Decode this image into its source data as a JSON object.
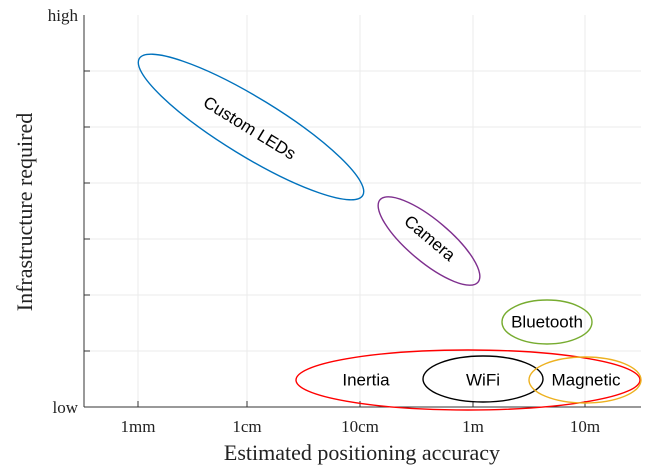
{
  "axes": {
    "x_label": "Estimated positioning accuracy",
    "y_label": "Infrastructure required",
    "x_ticks": [
      "1mm",
      "1cm",
      "10cm",
      "1m",
      "10m"
    ],
    "y_ticks": [
      "low",
      "high"
    ]
  },
  "regions": [
    {
      "label": "Custom LEDs",
      "color": "#0072bd"
    },
    {
      "label": "Camera",
      "color": "#7e2f8e"
    },
    {
      "label": "Bluetooth",
      "color": "#77ac30"
    },
    {
      "label": "Inertia",
      "color": "#ff0000"
    },
    {
      "label": "WiFi",
      "color": "#000000"
    },
    {
      "label": "Magnetic",
      "color": "#edb120"
    }
  ]
}
